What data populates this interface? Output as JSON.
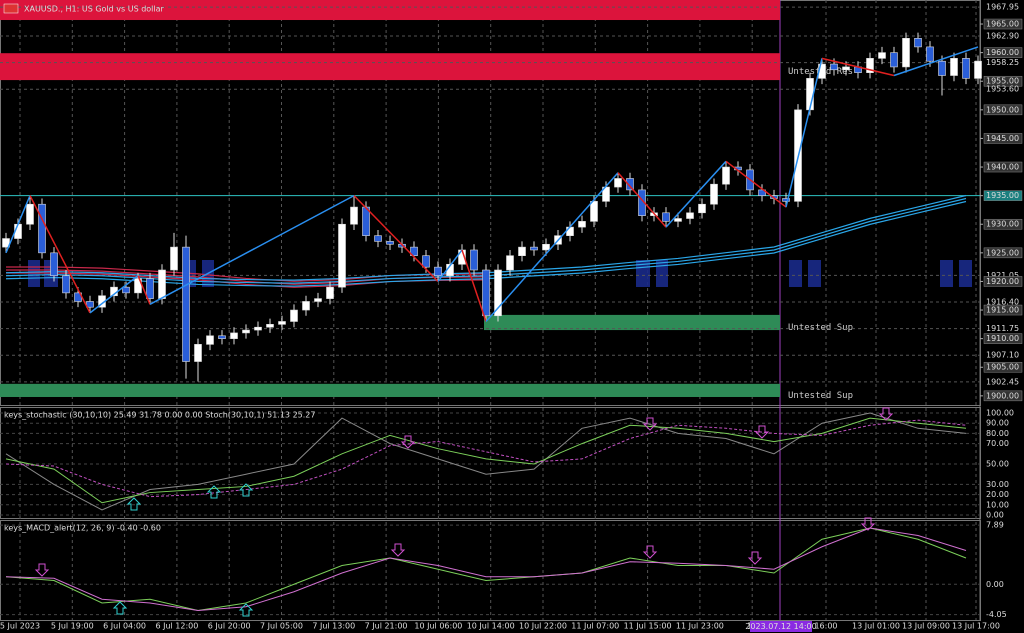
{
  "chart_data": {
    "type": "candlestick",
    "title": "XAUUSD., H1: US Gold vs US dollar",
    "ylim": [
      1898.4,
      1969.2
    ],
    "yticks": [
      {
        "value": 1967.95,
        "label": "1967.95"
      },
      {
        "value": 1965,
        "label": "1965.00"
      },
      {
        "value": 1962.9,
        "label": "1962.90"
      },
      {
        "value": 1960,
        "label": "1960.00"
      },
      {
        "value": 1958.25,
        "label": "1958.25"
      },
      {
        "value": 1955,
        "label": "1955.00"
      },
      {
        "value": 1953.6,
        "label": "1953.60"
      },
      {
        "value": 1950,
        "label": "1950.00"
      },
      {
        "value": 1945,
        "label": "1945.00"
      },
      {
        "value": 1940,
        "label": "1940.00"
      },
      {
        "value": 1935,
        "label": "1935.00"
      },
      {
        "value": 1930,
        "label": "1930.00"
      },
      {
        "value": 1925,
        "label": "1925.00"
      },
      {
        "value": 1921.05,
        "label": "1921.05"
      },
      {
        "value": 1920,
        "label": "1920.00"
      },
      {
        "value": 1916.4,
        "label": "1916.40"
      },
      {
        "value": 1915,
        "label": "1915.00"
      },
      {
        "value": 1911.75,
        "label": "1911.75"
      },
      {
        "value": 1910,
        "label": "1910.00"
      },
      {
        "value": 1907.1,
        "label": "1907.10"
      },
      {
        "value": 1905,
        "label": "1905.00"
      },
      {
        "value": 1902.45,
        "label": "1902.45"
      },
      {
        "value": 1900,
        "label": "1900.00"
      }
    ],
    "hline": 1935,
    "candles": [
      [
        1926,
        1928.5,
        1925,
        1927.5
      ],
      [
        1927.5,
        1931,
        1926.5,
        1930
      ],
      [
        1930,
        1935,
        1929,
        1933.5
      ],
      [
        1933.5,
        1934.5,
        1924,
        1925
      ],
      [
        1925,
        1926,
        1920,
        1921
      ],
      [
        1921,
        1922,
        1917,
        1918
      ],
      [
        1918,
        1919,
        1915.5,
        1916.5
      ],
      [
        1916.5,
        1917.5,
        1914.5,
        1915.5
      ],
      [
        1915.5,
        1918.5,
        1914.5,
        1917.5
      ],
      [
        1917.5,
        1920,
        1916.5,
        1919
      ],
      [
        1919,
        1920,
        1917,
        1918
      ],
      [
        1918,
        1921.5,
        1917,
        1920.5
      ],
      [
        1920.5,
        1921.5,
        1916,
        1917
      ],
      [
        1917,
        1923,
        1916,
        1922
      ],
      [
        1922,
        1928.5,
        1921,
        1926
      ],
      [
        1926,
        1928,
        1903,
        1906
      ],
      [
        1906,
        1910,
        1902.5,
        1909
      ],
      [
        1909,
        1911.5,
        1908,
        1910.5
      ],
      [
        1910.5,
        1911.5,
        1909,
        1910
      ],
      [
        1910,
        1912,
        1909,
        1911
      ],
      [
        1911,
        1912.5,
        1910,
        1911.5
      ],
      [
        1911.5,
        1913,
        1910.5,
        1912
      ],
      [
        1912,
        1913.5,
        1911,
        1912.5
      ],
      [
        1912.5,
        1914,
        1911.5,
        1913
      ],
      [
        1913,
        1916,
        1912,
        1915
      ],
      [
        1915,
        1917.5,
        1914,
        1916.5
      ],
      [
        1916.5,
        1918,
        1915.5,
        1917
      ],
      [
        1917,
        1920,
        1916,
        1919
      ],
      [
        1919,
        1931,
        1918,
        1930
      ],
      [
        1930,
        1935,
        1929,
        1933
      ],
      [
        1933,
        1934,
        1927,
        1928
      ],
      [
        1928,
        1929,
        1926,
        1927
      ],
      [
        1927,
        1928,
        1925.5,
        1926.5
      ],
      [
        1926.5,
        1927.5,
        1925,
        1926
      ],
      [
        1926,
        1927,
        1923.5,
        1924.5
      ],
      [
        1924.5,
        1925.5,
        1921.5,
        1922.5
      ],
      [
        1922.5,
        1923.5,
        1920,
        1921
      ],
      [
        1921,
        1924,
        1920,
        1923
      ],
      [
        1923,
        1926.5,
        1922,
        1925.5
      ],
      [
        1925.5,
        1926.5,
        1921,
        1922
      ],
      [
        1922,
        1923,
        1913,
        1914
      ],
      [
        1914,
        1923,
        1913,
        1922
      ],
      [
        1922,
        1925.5,
        1921,
        1924.5
      ],
      [
        1924.5,
        1927,
        1923.5,
        1926
      ],
      [
        1926,
        1927,
        1924.5,
        1925.5
      ],
      [
        1925.5,
        1927.5,
        1924.5,
        1926.5
      ],
      [
        1926.5,
        1929,
        1925.5,
        1928
      ],
      [
        1928,
        1930.5,
        1927,
        1929.5
      ],
      [
        1929.5,
        1931.5,
        1928.5,
        1930.5
      ],
      [
        1930.5,
        1935,
        1929.5,
        1934
      ],
      [
        1934,
        1937.5,
        1933,
        1936.5
      ],
      [
        1936.5,
        1939,
        1935.5,
        1938
      ],
      [
        1938,
        1939,
        1935,
        1936
      ],
      [
        1936,
        1937,
        1930.5,
        1931.5
      ],
      [
        1931.5,
        1933,
        1930.5,
        1932
      ],
      [
        1932,
        1933,
        1929.5,
        1930.5
      ],
      [
        1930.5,
        1932,
        1929.5,
        1931
      ],
      [
        1931,
        1933,
        1930,
        1932
      ],
      [
        1932,
        1934.5,
        1931,
        1933.5
      ],
      [
        1933.5,
        1938,
        1932.5,
        1937
      ],
      [
        1937,
        1941,
        1936,
        1940
      ],
      [
        1940,
        1941,
        1938.5,
        1939.5
      ],
      [
        1939.5,
        1940.5,
        1935,
        1936
      ],
      [
        1936,
        1937,
        1934,
        1935
      ],
      [
        1935,
        1936,
        1933.5,
        1934.5
      ],
      [
        1934.5,
        1935.5,
        1933,
        1934
      ],
      [
        1934,
        1951,
        1933,
        1950
      ],
      [
        1950,
        1956.5,
        1949,
        1955.5
      ],
      [
        1955.5,
        1959,
        1954.5,
        1958
      ],
      [
        1958,
        1959,
        1956,
        1957
      ],
      [
        1957,
        1958.5,
        1956,
        1957.5
      ],
      [
        1957.5,
        1958.5,
        1955.5,
        1956.5
      ],
      [
        1956.5,
        1960,
        1955.5,
        1959
      ],
      [
        1959,
        1961,
        1958,
        1960
      ],
      [
        1960,
        1961,
        1956.5,
        1957.5
      ],
      [
        1957.5,
        1963.5,
        1956.5,
        1962.5
      ],
      [
        1962.5,
        1963.5,
        1960,
        1961
      ],
      [
        1961,
        1962,
        1957.5,
        1958.5
      ],
      [
        1958.5,
        1959.5,
        1952.5,
        1956
      ],
      [
        1956,
        1960,
        1955,
        1959
      ],
      [
        1959,
        1960,
        1954.5,
        1955.5
      ],
      [
        1955.5,
        1959.5,
        1954.5,
        1958.5
      ]
    ],
    "zigzag": {
      "index": [
        0,
        2,
        7,
        11,
        12,
        29,
        36,
        38,
        40,
        51,
        55,
        60,
        65,
        68,
        74,
        81
      ],
      "price": [
        1925,
        1935,
        1914.5,
        1921,
        1916,
        1935,
        1920,
        1925.5,
        1913,
        1939,
        1929.5,
        1941,
        1933,
        1959,
        1956,
        1961
      ]
    },
    "ma_red": [
      1922,
      1922,
      1921.8,
      1921.3,
      1920.8,
      1920,
      1919.5,
      1919.8,
      1920.5,
      1920.7,
      1920.8,
      null,
      null,
      null,
      null,
      null,
      null,
      null,
      null,
      null,
      null
    ],
    "ma_blue": [
      1921,
      1921.2,
      1921,
      1920.5,
      1920,
      1919.8,
      1919.7,
      1920,
      1920.5,
      1920.8,
      1921,
      1921.5,
      1922,
      1922.8,
      1923.5,
      1924.5,
      1925.5,
      1928,
      1930.5,
      1932.5,
      1934.5
    ],
    "zones": [
      {
        "top": 1969.2,
        "bottom": 1965.7,
        "color": "#dc143c"
      },
      {
        "top": 1959.9,
        "bottom": 1955.2,
        "color": "#dc143c",
        "label": "Untested Res"
      },
      {
        "top": 1914.15,
        "bottom": 1911.5,
        "color": "#2e8b57",
        "label": "Untested Sup"
      },
      {
        "top": 1902.1,
        "bottom": 1899.8,
        "color": "#2e8b57",
        "label": "Untested Sup"
      }
    ],
    "stoch": {
      "title": "keys_stochastic (30,10,10) 25.49 31.78 0.00 0.00 Stoch(30,10,1) 51.13 25.27",
      "ylim": [
        0,
        100
      ],
      "yticks": [
        {
          "value": 100,
          "label": "100.00"
        },
        {
          "value": 90,
          "label": "90.00"
        },
        {
          "value": 80,
          "label": "80.00"
        },
        {
          "value": 70,
          "label": "70.00"
        },
        {
          "value": 50,
          "label": "50.00"
        },
        {
          "value": 30,
          "label": "30.00"
        },
        {
          "value": 20,
          "label": "20.00"
        },
        {
          "value": 10,
          "label": "10.00"
        },
        {
          "value": 0,
          "label": "0.00"
        }
      ],
      "raw": [
        60,
        30,
        5,
        25,
        30,
        40,
        50,
        95,
        70,
        55,
        40,
        45,
        85,
        95,
        80,
        75,
        60,
        90,
        100,
        85,
        80
      ],
      "main": [
        55,
        45,
        12,
        22,
        25,
        28,
        38,
        60,
        78,
        65,
        55,
        50,
        70,
        88,
        85,
        80,
        72,
        80,
        95,
        90,
        85
      ],
      "signal": [
        50,
        48,
        30,
        18,
        20,
        25,
        30,
        45,
        68,
        72,
        62,
        52,
        55,
        75,
        88,
        85,
        80,
        78,
        88,
        93,
        88
      ]
    },
    "macd": {
      "title": "keys_MACD_alert(12, 26, 9) -0.40 -0.60",
      "ylim": [
        -4.5,
        8.3
      ],
      "yticks": [
        7.89,
        {
          "value": 0,
          "label": "0.00"
        },
        -4.05
      ],
      "main": [
        1.0,
        0.5,
        -2.5,
        -2.0,
        -3.5,
        -2.5,
        0,
        2.5,
        3.5,
        2.0,
        0.5,
        1.0,
        1.5,
        3.5,
        2.5,
        2.5,
        1.5,
        6.0,
        7.5,
        6.0,
        3.5
      ],
      "signal": [
        1.0,
        0.8,
        -2.0,
        -2.5,
        -3.5,
        -3.0,
        -1.0,
        1.5,
        3.5,
        2.5,
        1.0,
        1.0,
        1.5,
        3.0,
        2.8,
        2.5,
        2.0,
        5.0,
        7.5,
        6.5,
        4.5
      ]
    },
    "time_labels": [
      "5 Jul 2023",
      "5 Jul 19:00",
      "6 Jul 04:00",
      "6 Jul 12:00",
      "6 Jul 20:00",
      "7 Jul 05:00",
      "7 Jul 13:00",
      "7 Jul 21:00",
      "10 Jul 06:00",
      "10 Jul 14:00",
      "10 Jul 22:00",
      "11 Jul 07:00",
      "11 Jul 15:00",
      "11 Jul 23:00",
      "12"
    ],
    "time_labels_after": [
      "16:00",
      "13 Jul 01:00",
      "13 Jul 09:00",
      "13 Jul 17:00"
    ],
    "cursor_time": "2023.07.12 14:00"
  }
}
